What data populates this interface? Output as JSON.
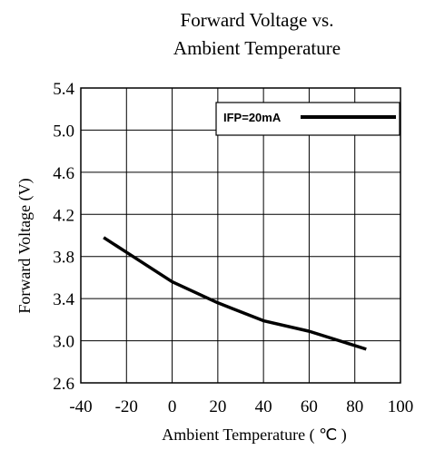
{
  "chart_data": {
    "type": "line",
    "title_lines": [
      "Forward Voltage vs.",
      "Ambient Temperature"
    ],
    "xlabel": "Ambient Temperature ( ℃ )",
    "ylabel": "Forward Voltage (V)",
    "xlim": [
      -40,
      100
    ],
    "ylim": [
      2.6,
      5.4
    ],
    "xticks": [
      "-40",
      "-20",
      "0",
      "20",
      "40",
      "60",
      "80",
      "100"
    ],
    "yticks": [
      "2.6",
      "3.0",
      "3.4",
      "3.8",
      "4.2",
      "4.6",
      "5.0",
      "5.4"
    ],
    "grid": true,
    "legend_position": "top-right",
    "series": [
      {
        "name": "IFP=20mA",
        "color": "#000000",
        "x": [
          -30,
          -20,
          0,
          20,
          40,
          60,
          85
        ],
        "y": [
          3.98,
          3.84,
          3.56,
          3.36,
          3.19,
          3.09,
          2.92
        ]
      }
    ]
  }
}
